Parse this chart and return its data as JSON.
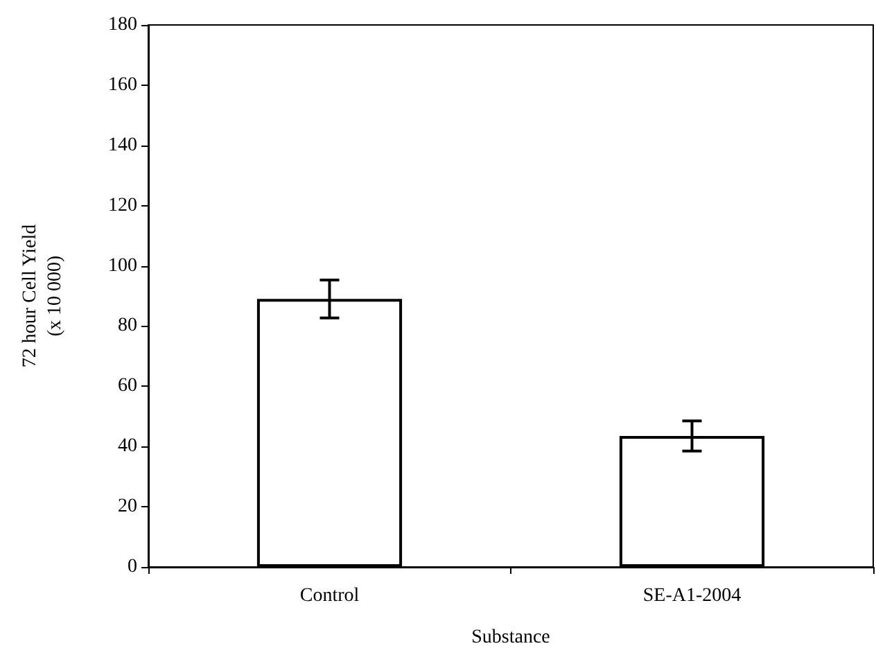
{
  "chart_data": {
    "type": "bar",
    "xlabel": "Substance",
    "ylabel": "72 hour Cell Yield\n(x 10 000)",
    "categories": [
      "Control",
      "SE-A1-2004"
    ],
    "values": [
      89,
      43.5
    ],
    "errors": [
      6.3,
      5
    ],
    "color": "#ffffff",
    "ylim": [
      0,
      180
    ],
    "yticks": [
      0,
      20,
      40,
      60,
      80,
      100,
      120,
      140,
      160,
      180
    ],
    "grid": false
  }
}
